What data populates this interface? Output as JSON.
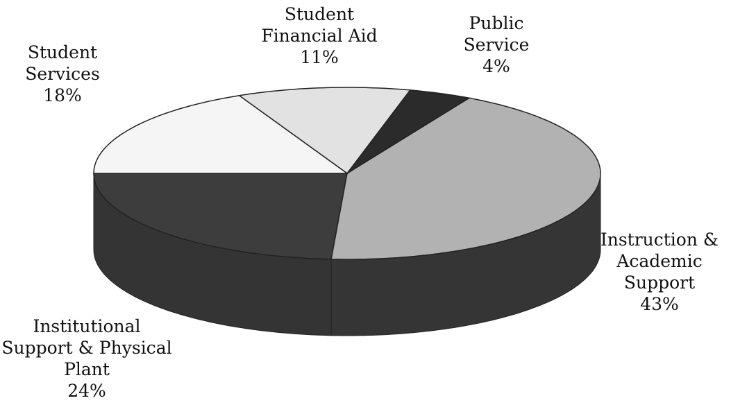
{
  "chart_data": {
    "type": "pie",
    "categories": [
      "Institutional Support & Physical Plant",
      "Instruction & Academic Support",
      "Public Service",
      "Student Financial Aid",
      "Student Services"
    ],
    "values": [
      24,
      43,
      4,
      11,
      18
    ],
    "value_labels": [
      "24%",
      "43%",
      "4%",
      "11%",
      "18%"
    ],
    "colors": [
      "#3d3d3d",
      "#b2b2b2",
      "#2b2b2b",
      "#e2e2e2",
      "#f5f5f5"
    ]
  }
}
